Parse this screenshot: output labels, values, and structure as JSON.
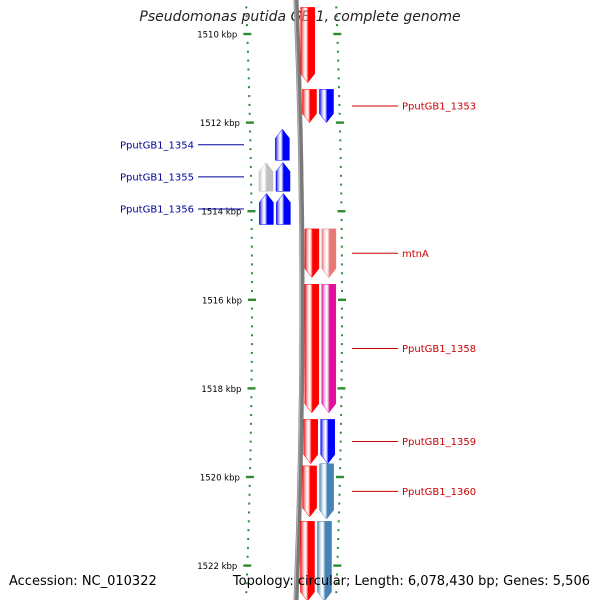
{
  "title": "Pseudomonas putida GB-1, complete genome",
  "footer": {
    "accession": "Accession: NC_010322",
    "topology": "Topology: circular; Length: 6,078,430 bp; Genes: 5,506"
  },
  "ruler": {
    "ticks": [
      {
        "label": "1510 kbp",
        "kbp": 1510
      },
      {
        "label": "1512 kbp",
        "kbp": 1512
      },
      {
        "label": "1514 kbp",
        "kbp": 1514
      },
      {
        "label": "1516 kbp",
        "kbp": 1516
      },
      {
        "label": "1518 kbp",
        "kbp": 1518
      },
      {
        "label": "1520 kbp",
        "kbp": 1520
      },
      {
        "label": "1522 kbp",
        "kbp": 1522
      }
    ],
    "tick_color": "#2e8b2e"
  },
  "genes": [
    {
      "name": "",
      "strand": "+",
      "track": "forward-inner",
      "start_kbp": 1509.4,
      "end_kbp": 1511.1,
      "color": "#ff0000",
      "labeled": false
    },
    {
      "name": "PputGB1_1353",
      "strand": "-",
      "track": "forward-inner",
      "start_kbp": 1511.25,
      "end_kbp": 1512.0,
      "color": "#ff0000",
      "labeled": true
    },
    {
      "name": "",
      "strand": "+",
      "track": "forward-outer",
      "start_kbp": 1511.25,
      "end_kbp": 1512.0,
      "color": "#0000ff",
      "labeled": false
    },
    {
      "name": "PputGB1_1354",
      "strand": "+",
      "track": "reverse-inner",
      "start_kbp": 1512.15,
      "end_kbp": 1512.85,
      "color": "#0000ff",
      "labeled": true
    },
    {
      "name": "PputGB1_1355",
      "strand": "+",
      "track": "reverse-inner",
      "start_kbp": 1512.9,
      "end_kbp": 1513.55,
      "color": "#0000ff",
      "labeled": true
    },
    {
      "name": "",
      "strand": "+",
      "track": "reverse-outer",
      "start_kbp": 1512.9,
      "end_kbp": 1513.55,
      "color": "#c0c0c0",
      "labeled": false
    },
    {
      "name": "PputGB1_1356",
      "strand": "+",
      "track": "reverse-inner",
      "start_kbp": 1513.6,
      "end_kbp": 1514.3,
      "color": "#0000ff",
      "labeled": true
    },
    {
      "name": "",
      "strand": "+",
      "track": "reverse-outer",
      "start_kbp": 1513.6,
      "end_kbp": 1514.3,
      "color": "#0000ff",
      "labeled": false
    },
    {
      "name": "mtnA",
      "strand": "+",
      "track": "forward-inner",
      "start_kbp": 1514.4,
      "end_kbp": 1515.5,
      "color": "#ff0000",
      "labeled": true
    },
    {
      "name": "",
      "strand": "+",
      "track": "forward-outer",
      "start_kbp": 1514.4,
      "end_kbp": 1515.5,
      "color": "#e87878",
      "labeled": false
    },
    {
      "name": "PputGB1_1358",
      "strand": "+",
      "track": "forward-inner",
      "start_kbp": 1515.65,
      "end_kbp": 1518.55,
      "color": "#ff0000",
      "labeled": true
    },
    {
      "name": "",
      "strand": "+",
      "track": "forward-outer",
      "start_kbp": 1515.65,
      "end_kbp": 1518.55,
      "color": "#e0109a",
      "labeled": false
    },
    {
      "name": "PputGB1_1359",
      "strand": "+",
      "track": "forward-inner",
      "start_kbp": 1518.7,
      "end_kbp": 1519.7,
      "color": "#ff0000",
      "labeled": true
    },
    {
      "name": "",
      "strand": "+",
      "track": "forward-outer",
      "start_kbp": 1518.7,
      "end_kbp": 1519.7,
      "color": "#0000ff",
      "labeled": false
    },
    {
      "name": "PputGB1_1360",
      "strand": "+",
      "track": "forward-inner",
      "start_kbp": 1519.75,
      "end_kbp": 1520.9,
      "color": "#ff0000",
      "labeled": true
    },
    {
      "name": "",
      "strand": "+",
      "track": "forward-outer",
      "start_kbp": 1519.7,
      "end_kbp": 1520.95,
      "color": "#4682b4",
      "labeled": false
    },
    {
      "name": "",
      "strand": "+",
      "track": "forward-inner",
      "start_kbp": 1521.0,
      "end_kbp": 1522.8,
      "color": "#ff0000",
      "labeled": false
    },
    {
      "name": "",
      "strand": "+",
      "track": "forward-outer",
      "start_kbp": 1521.0,
      "end_kbp": 1522.8,
      "color": "#4682b4",
      "labeled": false
    }
  ],
  "label_colors": {
    "forward": "#cc0000",
    "reverse": "#000099"
  }
}
